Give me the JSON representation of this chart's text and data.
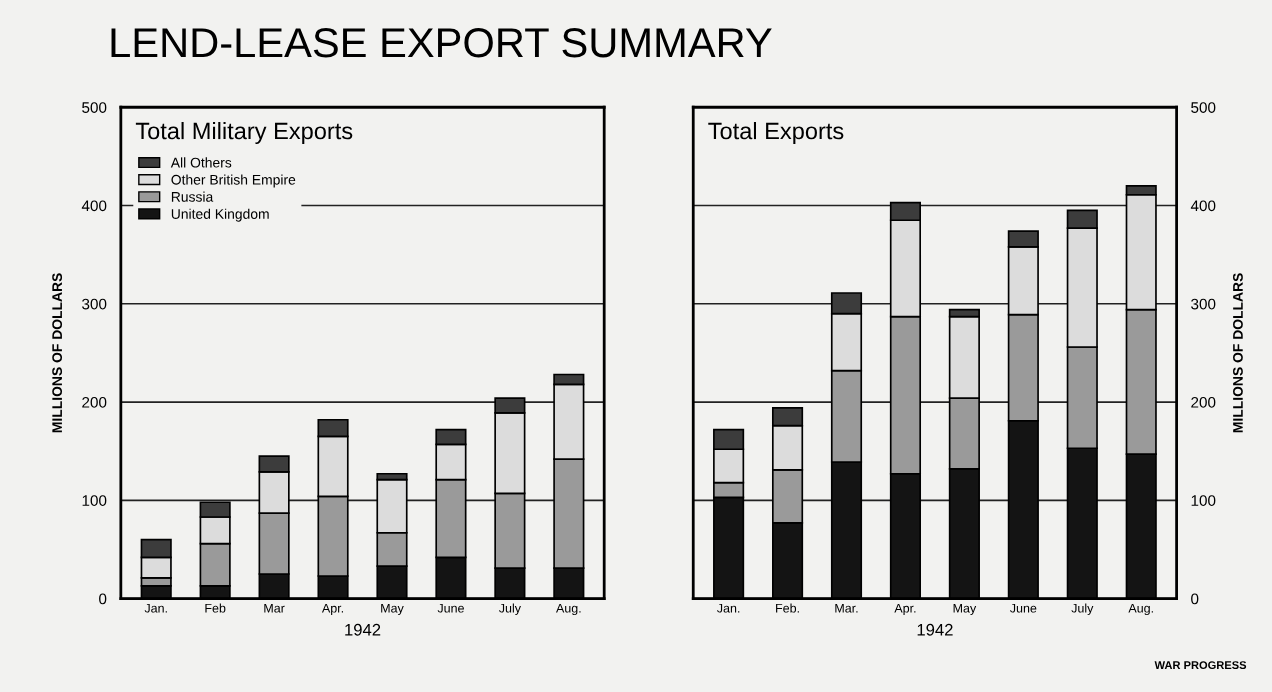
{
  "chart_data": [
    {
      "type": "bar",
      "stacked": true,
      "subtitle": "Total Military Exports",
      "xlabel": "1942",
      "ylabel": "MILLIONS OF DOLLARS",
      "annotations": [
        "LEND-LEASE EXPORT SUMMARY"
      ],
      "categories": [
        "Jan.",
        "Feb",
        "Mar",
        "Apr.",
        "May",
        "June",
        "July",
        "Aug."
      ],
      "series": [
        {
          "name": "United Kingdom",
          "color": "#141414",
          "values": [
            13,
            13,
            25,
            23,
            33,
            42,
            31,
            31
          ]
        },
        {
          "name": "Russia",
          "color": "#9a9a9a",
          "values": [
            8,
            43,
            62,
            81,
            34,
            79,
            76,
            111
          ]
        },
        {
          "name": "Other British Empire",
          "color": "#dcdcdc",
          "values": [
            21,
            27,
            42,
            61,
            54,
            36,
            82,
            76
          ]
        },
        {
          "name": "All Others",
          "color": "#3c3c3c",
          "values": [
            18,
            15,
            16,
            17,
            6,
            15,
            15,
            10
          ]
        }
      ],
      "ylim": [
        0,
        500
      ],
      "yticks": [
        0,
        100,
        200,
        300,
        400,
        500
      ],
      "grid": "y",
      "legend": "top left"
    },
    {
      "type": "bar",
      "stacked": true,
      "subtitle": "Total Exports",
      "xlabel": "1942",
      "y2label": "MILLIONS OF DOLLARS",
      "annotations": [
        "WAR PROGRESS"
      ],
      "categories": [
        "Jan.",
        "Feb.",
        "Mar.",
        "Apr.",
        "May",
        "June",
        "July",
        "Aug."
      ],
      "series": [
        {
          "color": "#141414",
          "axis": "y2",
          "values": [
            103,
            77,
            139,
            127,
            132,
            181,
            153,
            147
          ]
        },
        {
          "color": "#9a9a9a",
          "axis": "y2",
          "values": [
            15,
            54,
            93,
            160,
            72,
            108,
            103,
            147
          ]
        },
        {
          "color": "#dcdcdc",
          "axis": "y2",
          "values": [
            34,
            45,
            58,
            98,
            83,
            69,
            121,
            117
          ]
        },
        {
          "color": "#3c3c3c",
          "axis": "y2",
          "values": [
            20,
            18,
            21,
            18,
            7,
            16,
            18,
            9
          ]
        }
      ],
      "y2lim": [
        0,
        500
      ],
      "y2ticks": [
        0,
        100,
        200,
        300,
        400,
        500
      ],
      "grid": "y"
    }
  ]
}
